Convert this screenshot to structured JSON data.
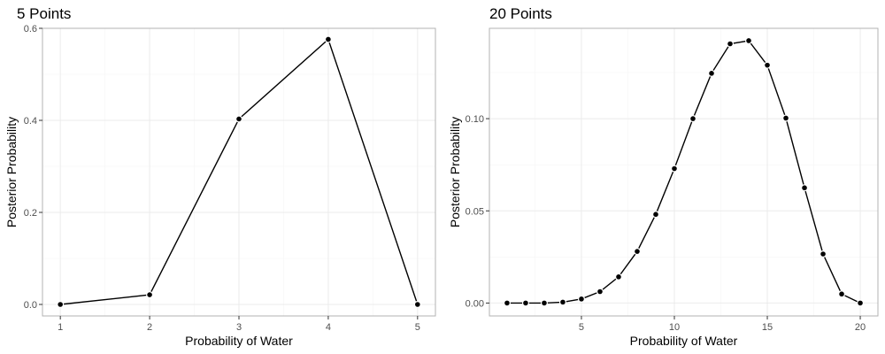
{
  "chart_data": [
    {
      "type": "line",
      "title": "5 Points",
      "xlabel": "Probability of Water",
      "ylabel": "Posterior Probability",
      "x": [
        1,
        2,
        3,
        4,
        5
      ],
      "values": [
        0.0,
        0.021,
        0.403,
        0.576,
        0.0
      ],
      "xlim": [
        0.8,
        5.2
      ],
      "ylim": [
        -0.025,
        0.6
      ],
      "xticks": [
        1,
        2,
        3,
        4,
        5
      ],
      "xtick_labels": [
        "1",
        "2",
        "3",
        "4",
        "5"
      ],
      "yticks": [
        0.0,
        0.2,
        0.4,
        0.6
      ],
      "ytick_labels": [
        "0.0",
        "0.2",
        "0.4",
        "0.6"
      ],
      "grid": true,
      "markers": true
    },
    {
      "type": "line",
      "title": "20 Points",
      "xlabel": "Probability of Water",
      "ylabel": "Posterior Probability",
      "x": [
        1,
        2,
        3,
        4,
        5,
        6,
        7,
        8,
        9,
        10,
        11,
        12,
        13,
        14,
        15,
        16,
        17,
        18,
        19,
        20
      ],
      "values": [
        0.0,
        0.0,
        0.0,
        0.0005,
        0.0022,
        0.0062,
        0.0142,
        0.028,
        0.0481,
        0.0729,
        0.1,
        0.1246,
        0.1406,
        0.1423,
        0.129,
        0.1003,
        0.0625,
        0.0266,
        0.0049,
        0.0
      ],
      "xlim": [
        0.05,
        20.95
      ],
      "ylim": [
        -0.007,
        0.149
      ],
      "xticks": [
        5,
        10,
        15,
        20
      ],
      "xtick_labels": [
        "5",
        "10",
        "15",
        "20"
      ],
      "yticks": [
        0.0,
        0.05,
        0.1
      ],
      "ytick_labels": [
        "0.00",
        "0.05",
        "0.10"
      ],
      "grid": true,
      "markers": true
    }
  ]
}
